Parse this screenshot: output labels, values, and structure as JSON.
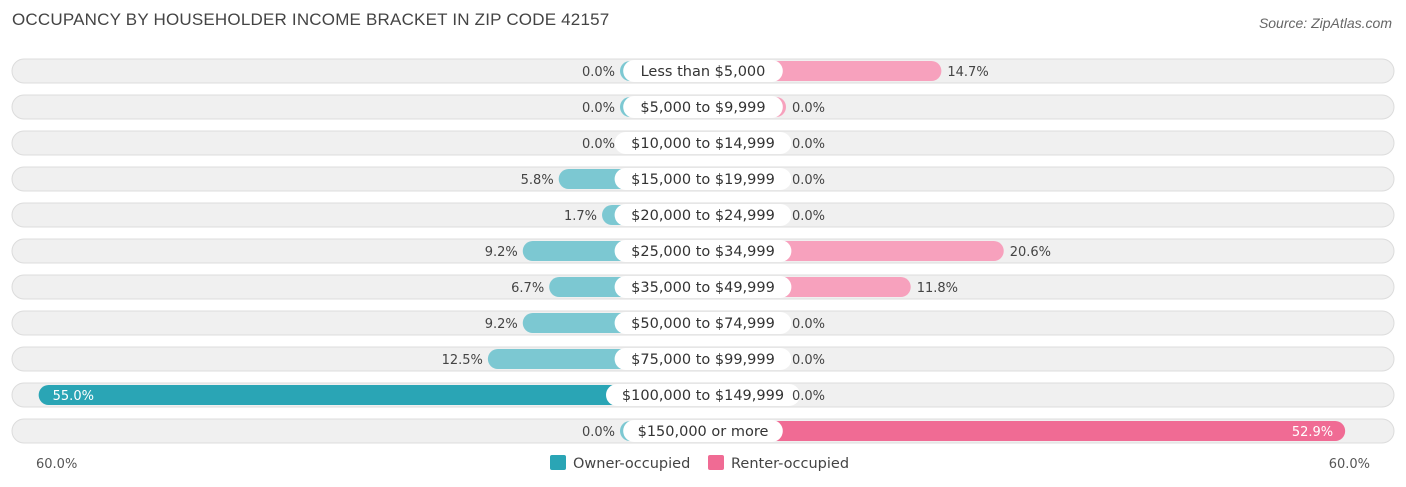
{
  "header": {
    "title": "OCCUPANCY BY HOUSEHOLDER INCOME BRACKET IN ZIP CODE 42157",
    "source": "Source: ZipAtlas.com"
  },
  "chart_data": {
    "type": "bar",
    "orientation": "horizontal-diverging",
    "title": "OCCUPANCY BY HOUSEHOLDER INCOME BRACKET IN ZIP CODE 42157",
    "categories": [
      "Less than $5,000",
      "$5,000 to $9,999",
      "$10,000 to $14,999",
      "$15,000 to $19,999",
      "$20,000 to $24,999",
      "$25,000 to $34,999",
      "$35,000 to $49,999",
      "$50,000 to $74,999",
      "$75,000 to $99,999",
      "$100,000 to $149,999",
      "$150,000 or more"
    ],
    "series": [
      {
        "name": "Owner-occupied",
        "side": "left",
        "color": "#7cc8d2",
        "highlight_color": "#2aa5b5",
        "values": [
          0.0,
          0.0,
          0.0,
          5.8,
          1.7,
          9.2,
          6.7,
          9.2,
          12.5,
          55.0,
          0.0
        ],
        "labels": [
          "0.0%",
          "0.0%",
          "0.0%",
          "5.8%",
          "1.7%",
          "9.2%",
          "6.7%",
          "9.2%",
          "12.5%",
          "55.0%",
          "0.0%"
        ]
      },
      {
        "name": "Renter-occupied",
        "side": "right",
        "color": "#f7a1bd",
        "highlight_color": "#f06b94",
        "values": [
          14.7,
          0.0,
          0.0,
          0.0,
          0.0,
          20.6,
          11.8,
          0.0,
          0.0,
          0.0,
          52.9
        ],
        "labels": [
          "14.7%",
          "0.0%",
          "0.0%",
          "0.0%",
          "0.0%",
          "20.6%",
          "11.8%",
          "0.0%",
          "0.0%",
          "0.0%",
          "52.9%"
        ]
      }
    ],
    "axis": {
      "max": 60.0,
      "left_label": "60.0%",
      "right_label": "60.0%"
    },
    "legend": {
      "placement": "bottom-center",
      "items": [
        "Owner-occupied",
        "Renter-occupied"
      ]
    },
    "grid": false
  }
}
